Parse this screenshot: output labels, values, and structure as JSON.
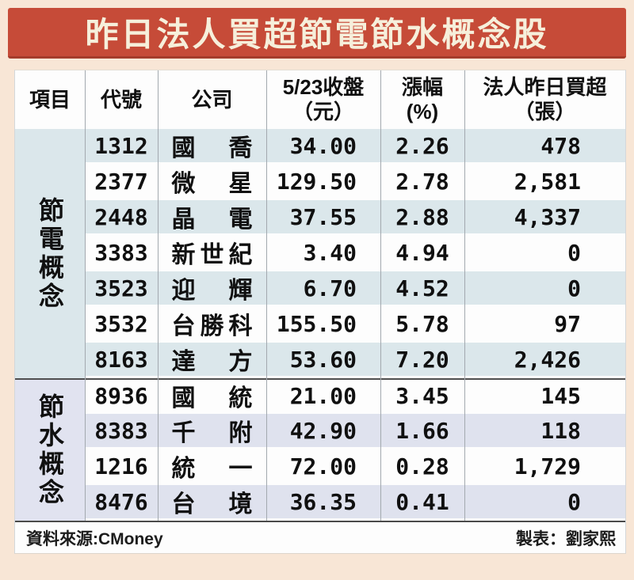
{
  "title": "昨日法人買超節電節水概念股",
  "colors": {
    "banner_bg": "#c64b38",
    "banner_border": "#a53c2b",
    "banner_text": "#f6efdb",
    "page_bg": "#f8e6d6",
    "stripe_blue": "#dbe7eb",
    "stripe_lavender": "#dfe2ee",
    "group_divider": "#4f4f4f"
  },
  "table": {
    "headers": {
      "item": "項目",
      "code": "代號",
      "company": "公司",
      "close_line1": "5/23收盤",
      "close_line2": "（元）",
      "change_line1": "漲幅",
      "change_line2": "(%)",
      "netbuy_line1": "法人昨日買超",
      "netbuy_line2": "（張）"
    },
    "groups": [
      {
        "label": "節電概念",
        "row_count": 7
      },
      {
        "label": "節水概念",
        "row_count": 4
      }
    ],
    "rows": [
      {
        "code": "1312",
        "company": "國喬",
        "close": "34.00",
        "change": "2.26",
        "net_buy": "478"
      },
      {
        "code": "2377",
        "company": "微星",
        "close": "129.50",
        "change": "2.78",
        "net_buy": "2,581"
      },
      {
        "code": "2448",
        "company": "晶電",
        "close": "37.55",
        "change": "2.88",
        "net_buy": "4,337"
      },
      {
        "code": "3383",
        "company": "新世紀",
        "close": "3.40",
        "change": "4.94",
        "net_buy": "0"
      },
      {
        "code": "3523",
        "company": "迎輝",
        "close": "6.70",
        "change": "4.52",
        "net_buy": "0"
      },
      {
        "code": "3532",
        "company": "台勝科",
        "close": "155.50",
        "change": "5.78",
        "net_buy": "97"
      },
      {
        "code": "8163",
        "company": "達方",
        "close": "53.60",
        "change": "7.20",
        "net_buy": "2,426"
      },
      {
        "code": "8936",
        "company": "國統",
        "close": "21.00",
        "change": "3.45",
        "net_buy": "145"
      },
      {
        "code": "8383",
        "company": "千附",
        "close": "42.90",
        "change": "1.66",
        "net_buy": "118"
      },
      {
        "code": "1216",
        "company": "統一",
        "close": "72.00",
        "change": "0.28",
        "net_buy": "1,729"
      },
      {
        "code": "8476",
        "company": "台境",
        "close": "36.35",
        "change": "0.41",
        "net_buy": "0"
      }
    ]
  },
  "footer": {
    "source": "資料來源:CMoney",
    "credit": "製表：劉家熙"
  },
  "chart_data": {
    "type": "table",
    "title": "昨日法人買超節電節水概念股",
    "columns": [
      "項目",
      "代號",
      "公司",
      "5/23收盤（元）",
      "漲幅(%)",
      "法人昨日買超（張）"
    ],
    "rows": [
      [
        "節電概念",
        "1312",
        "國喬",
        34.0,
        2.26,
        478
      ],
      [
        "節電概念",
        "2377",
        "微星",
        129.5,
        2.78,
        2581
      ],
      [
        "節電概念",
        "2448",
        "晶電",
        37.55,
        2.88,
        4337
      ],
      [
        "節電概念",
        "3383",
        "新世紀",
        3.4,
        4.94,
        0
      ],
      [
        "節電概念",
        "3523",
        "迎輝",
        6.7,
        4.52,
        0
      ],
      [
        "節電概念",
        "3532",
        "台勝科",
        155.5,
        5.78,
        97
      ],
      [
        "節電概念",
        "8163",
        "達方",
        53.6,
        7.2,
        2426
      ],
      [
        "節水概念",
        "8936",
        "國統",
        21.0,
        3.45,
        145
      ],
      [
        "節水概念",
        "8383",
        "千附",
        42.9,
        1.66,
        118
      ],
      [
        "節水概念",
        "1216",
        "統一",
        72.0,
        0.28,
        1729
      ],
      [
        "節水概念",
        "8476",
        "台境",
        36.35,
        0.41,
        0
      ]
    ],
    "source": "CMoney",
    "credit": "劉家熙"
  }
}
